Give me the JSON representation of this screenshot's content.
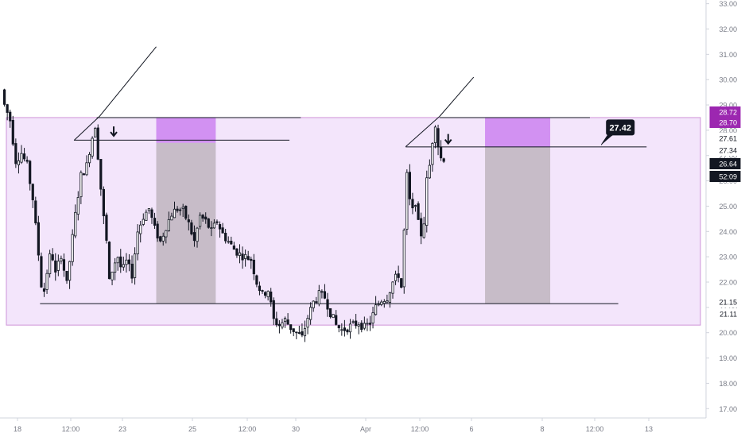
{
  "chart_data": {
    "type": "candlestick",
    "y_axis": {
      "ticks": [
        17.0,
        18.0,
        19.0,
        20.0,
        21.0,
        22.0,
        23.0,
        24.0,
        25.0,
        26.0,
        27.0,
        28.0,
        29.0,
        30.0,
        31.0,
        32.0,
        33.0
      ],
      "tick_labels": [
        "17.00",
        "18.00",
        "19.00",
        "20.00",
        "21.00",
        "22.00",
        "23.00",
        "24.00",
        "25.00",
        "26.00",
        "27.00",
        "28.00",
        "29.00",
        "30.00",
        "31.00",
        "32.00",
        "33.00"
      ],
      "ylim": [
        16.3,
        33.1
      ]
    },
    "x_axis": {
      "tick_labels": [
        "18",
        "12:00",
        "23",
        "25",
        "12:00",
        "30",
        "Apr",
        "12:00",
        "6",
        "8",
        "12:00",
        "13"
      ]
    },
    "price_path": [
      [
        0,
        29.6
      ],
      [
        1,
        29.0
      ],
      [
        3,
        28.4
      ],
      [
        5,
        26.8
      ],
      [
        7,
        27.1
      ],
      [
        9,
        26.6
      ],
      [
        11,
        25.3
      ],
      [
        13,
        23.1
      ],
      [
        14.5,
        21.3
      ],
      [
        16,
        22.4
      ],
      [
        17.5,
        23.3
      ],
      [
        19,
        22.3
      ],
      [
        21,
        23.1
      ],
      [
        23,
        21.9
      ],
      [
        24.5,
        23.3
      ],
      [
        26.5,
        25.1
      ],
      [
        28,
        26.2
      ],
      [
        30,
        26.6
      ],
      [
        31.5,
        27.5
      ],
      [
        33,
        28.2
      ],
      [
        34.5,
        26.4
      ],
      [
        35.5,
        25.0
      ],
      [
        37,
        23.6
      ],
      [
        38,
        22.0
      ],
      [
        39.5,
        22.7
      ],
      [
        41,
        23.0
      ],
      [
        42.5,
        22.4
      ],
      [
        44,
        22.8
      ],
      [
        46,
        22.3
      ],
      [
        48,
        24.0
      ],
      [
        50,
        24.6
      ],
      [
        52,
        24.9
      ],
      [
        54,
        24.1
      ],
      [
        56,
        23.6
      ],
      [
        58,
        24.2
      ],
      [
        60,
        24.7
      ],
      [
        62,
        24.9
      ],
      [
        64,
        24.8
      ],
      [
        66,
        24.3
      ],
      [
        68,
        23.6
      ],
      [
        70,
        24.6
      ],
      [
        72,
        24.4
      ],
      [
        74,
        24.0
      ],
      [
        76,
        24.4
      ],
      [
        78,
        23.9
      ],
      [
        80,
        23.6
      ],
      [
        82,
        23.3
      ],
      [
        84,
        23.1
      ],
      [
        86,
        23.0
      ],
      [
        88,
        22.9
      ],
      [
        90,
        22.0
      ],
      [
        92,
        21.5
      ],
      [
        94,
        21.7
      ],
      [
        96,
        20.5
      ],
      [
        98,
        20.3
      ],
      [
        100,
        20.5
      ],
      [
        102,
        20.2
      ],
      [
        104,
        20.0
      ],
      [
        106,
        19.8
      ],
      [
        108,
        20.6
      ],
      [
        110,
        21.2
      ],
      [
        112,
        21.5
      ],
      [
        114,
        21.4
      ],
      [
        116,
        20.8
      ],
      [
        118,
        20.3
      ],
      [
        120,
        20.1
      ],
      [
        122,
        20.2
      ],
      [
        124,
        20.3
      ],
      [
        126,
        20.4
      ],
      [
        128,
        20.2
      ],
      [
        130,
        20.4
      ],
      [
        132,
        21.0
      ],
      [
        134,
        21.3
      ],
      [
        136,
        21.4
      ],
      [
        138,
        22.0
      ],
      [
        140,
        22.3
      ],
      [
        141,
        21.8
      ],
      [
        142,
        24.0
      ],
      [
        143,
        26.2
      ],
      [
        144,
        25.2
      ],
      [
        145,
        24.8
      ],
      [
        146,
        25.2
      ],
      [
        147,
        24.3
      ],
      [
        148,
        23.9
      ],
      [
        149,
        24.4
      ],
      [
        150,
        26.0
      ],
      [
        151,
        26.6
      ],
      [
        152,
        27.6
      ],
      [
        153,
        28.3
      ],
      [
        154,
        27.4
      ],
      [
        155,
        26.9
      ]
    ],
    "candle_count": 156,
    "annotations": {
      "range_box": {
        "top": 28.5,
        "bottom": 20.3,
        "color": "#e1bee7"
      },
      "horizontal_lines": [
        {
          "price": 28.5,
          "from_bar": 33,
          "to_bar": 105
        },
        {
          "price": 27.61,
          "from_bar": 25,
          "to_bar": 101
        },
        {
          "price": 21.15,
          "from_bar": 13,
          "to_bar": 217
        },
        {
          "price": 28.5,
          "from_bar": 154,
          "to_bar": 207
        },
        {
          "price": 27.34,
          "from_bar": 142,
          "to_bar": 227
        }
      ],
      "trend_lines": [
        {
          "from": [
            25,
            27.6
          ],
          "to": [
            34,
            28.55
          ]
        },
        {
          "from": [
            34,
            28.55
          ],
          "to": [
            54,
            31.3
          ]
        },
        {
          "from": [
            142,
            27.35
          ],
          "to": [
            154,
            28.55
          ]
        },
        {
          "from": [
            154,
            28.55
          ],
          "to": [
            166,
            30.1
          ]
        }
      ],
      "short_positions": [
        {
          "from_bar": 54,
          "to_bar": 75,
          "stop": 28.5,
          "entry": 27.5,
          "target": 21.15
        },
        {
          "from_bar": 170,
          "to_bar": 193,
          "stop": 28.5,
          "entry": 27.34,
          "target": 21.15
        }
      ],
      "down_arrows": [
        {
          "bar": 39,
          "price": 27.9
        },
        {
          "bar": 157,
          "price": 27.6
        }
      ],
      "price_callout": {
        "text": "27.42",
        "bar": 211,
        "price": 27.42
      }
    },
    "price_tags": [
      {
        "text": "28.72",
        "bg": "#9c27b0",
        "fg": "#ffffff"
      },
      {
        "text": "28.70",
        "bg": "#9c27b0",
        "fg": "#ffffff"
      },
      {
        "text": "27.61",
        "bg": "#ffffff",
        "fg": "#131722"
      },
      {
        "text": "27.34",
        "bg": "#ffffff",
        "fg": "#131722"
      },
      {
        "text": "26.64",
        "bg": "#131722",
        "fg": "#ffffff"
      },
      {
        "text": "52:09",
        "bg": "#131722",
        "fg": "#ffffff"
      },
      {
        "text": "21.15",
        "bg": "#ffffff",
        "fg": "#131722"
      },
      {
        "text": "21.11",
        "bg": "#ffffff",
        "fg": "#131722"
      }
    ],
    "colors": {
      "candle": "#131722",
      "position_profit": "#c7bcc8",
      "position_stop": "#d291f2"
    }
  }
}
